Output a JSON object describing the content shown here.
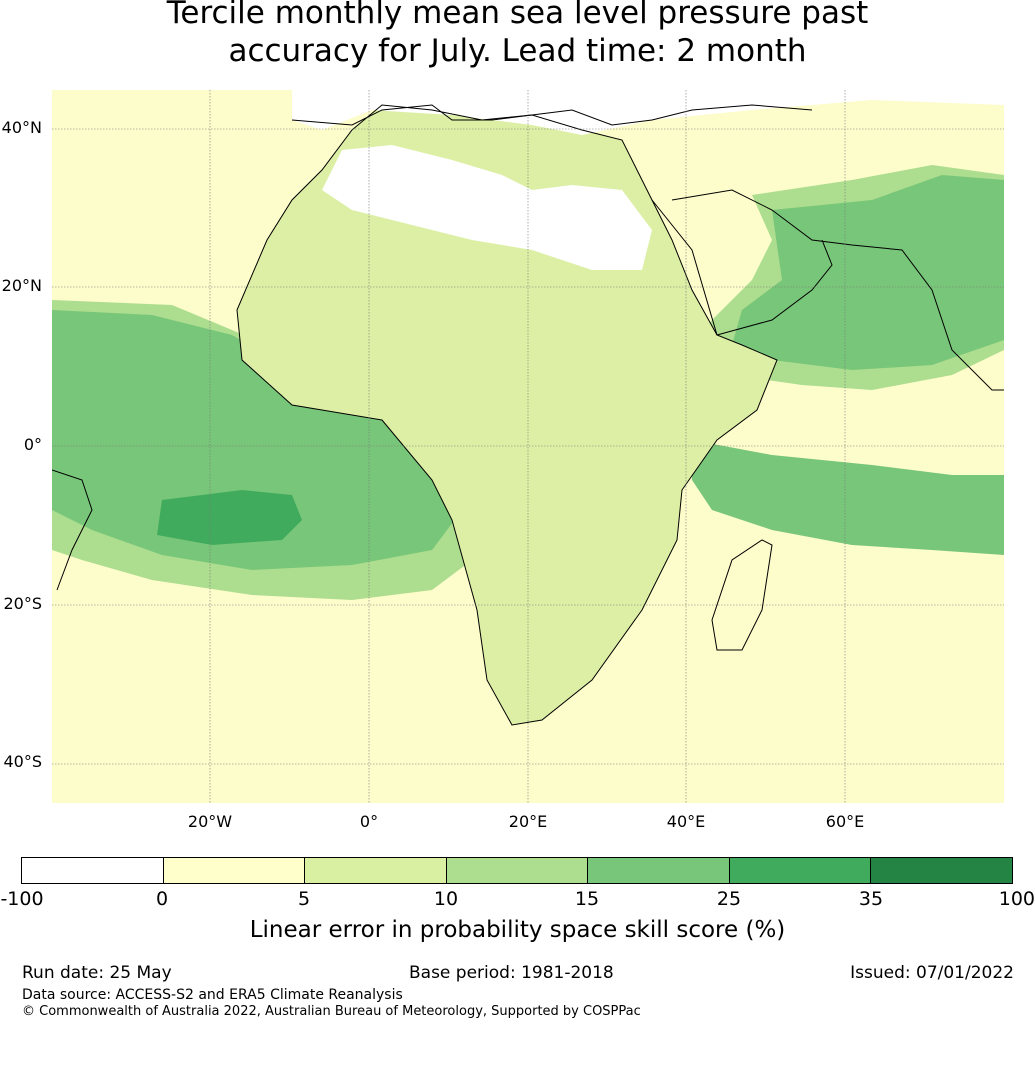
{
  "title": {
    "line1": "Tercile monthly mean sea level pressure past",
    "line2": "accuracy for July. Lead time: 2 month"
  },
  "map": {
    "lat_ticks": [
      "40°N",
      "20°N",
      "0°",
      "20°S",
      "40°S"
    ],
    "lon_ticks": [
      "20°W",
      "0°",
      "20°E",
      "40°E",
      "60°E"
    ],
    "ocean_base_color": "#fdfccb",
    "land_base_color": "#dcefa5"
  },
  "colorbar": {
    "title": "Linear error in probability space skill score (%)",
    "tick_labels": [
      "-100",
      "0",
      "5",
      "10",
      "15",
      "25",
      "35",
      "100"
    ],
    "colors": [
      "#ffffff",
      "#ffffcc",
      "#d9f0a3",
      "#addd8e",
      "#78c679",
      "#41ab5d",
      "#238443"
    ]
  },
  "footer": {
    "run_date": "Run date: 25 May",
    "base_period": "Base period: 1981-2018",
    "issued": "Issued: 07/01/2022",
    "data_source": "Data source: ACCESS-S2 and ERA5 Climate Reanalysis",
    "copyright": "© Commonwealth of Australia 2022, Australian Bureau of Meteorology, Supported by COSPPac"
  }
}
